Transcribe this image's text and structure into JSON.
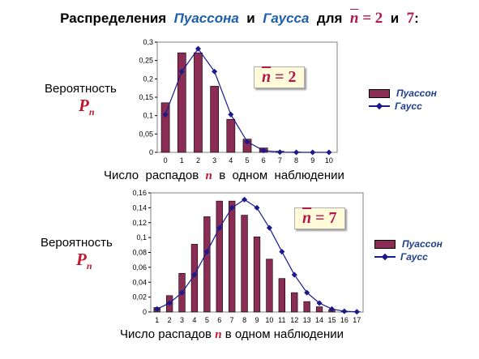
{
  "title": {
    "prefix": "Распределения",
    "poisson": "Пуассона",
    "and1": "и",
    "gauss": "Гаусса",
    "for": "для",
    "n1": "n = 2",
    "and2": "и",
    "n2": "7",
    "colon": ":"
  },
  "charts": [
    {
      "ylabel": "Вероятность",
      "pn": "P",
      "pn_sub": "n",
      "formula_var": "n",
      "formula_rest": " = 2",
      "xcap_before": "Число  распадов  ",
      "xcap_n": "n",
      "xcap_after": "  в  одном  наблюдении",
      "legend": [
        "Пуассон",
        "Гаусс"
      ]
    },
    {
      "ylabel": "Вероятность",
      "pn": "P",
      "pn_sub": "n",
      "formula_var": "n",
      "formula_rest": " = 7",
      "xcap_before": "Число распадов ",
      "xcap_n": "n",
      "xcap_after": " в одном наблюдении",
      "legend": [
        "Пуассон",
        "Гаусс"
      ]
    }
  ],
  "colors": {
    "bar": "#8b2c55",
    "line": "#1a1a8c",
    "accent": "#b0174c",
    "legend_text": "#1f3f8f"
  },
  "chart_data": [
    {
      "type": "bar",
      "categories": [
        "0",
        "1",
        "2",
        "3",
        "4",
        "5",
        "6",
        "7",
        "8",
        "9",
        "10"
      ],
      "series": [
        {
          "name": "Пуассон",
          "type": "bar",
          "values": [
            0.135,
            0.271,
            0.271,
            0.18,
            0.09,
            0.036,
            0.012,
            0.003,
            0.001,
            0.0002,
            0.0
          ]
        },
        {
          "name": "Гаусс",
          "type": "line",
          "values": [
            0.103,
            0.22,
            0.282,
            0.22,
            0.103,
            0.029,
            0.005,
            0.0005,
            0.0,
            0.0,
            0.0
          ]
        }
      ],
      "yticks": [
        "0",
        "0,05",
        "0,1",
        "0,15",
        "0,2",
        "0,25",
        "0,3"
      ],
      "ylim": [
        0,
        0.3
      ],
      "legend_position": "right"
    },
    {
      "type": "bar",
      "categories": [
        "1",
        "2",
        "3",
        "4",
        "5",
        "6",
        "7",
        "8",
        "9",
        "10",
        "11",
        "12",
        "13",
        "14",
        "15",
        "16",
        "17"
      ],
      "series": [
        {
          "name": "Пуассон",
          "type": "bar",
          "values": [
            0.006,
            0.022,
            0.052,
            0.091,
            0.128,
            0.149,
            0.149,
            0.13,
            0.101,
            0.071,
            0.045,
            0.026,
            0.014,
            0.007,
            0.003,
            0.001,
            0.0005
          ]
        },
        {
          "name": "Гаусс",
          "type": "line",
          "values": [
            0.004,
            0.012,
            0.026,
            0.05,
            0.081,
            0.113,
            0.14,
            0.151,
            0.14,
            0.113,
            0.081,
            0.05,
            0.026,
            0.012,
            0.004,
            0.001,
            0.0003
          ]
        }
      ],
      "yticks": [
        "0",
        "0,02",
        "0,04",
        "0,06",
        "0,08",
        "0,1",
        "0,12",
        "0,14",
        "0,16"
      ],
      "ylim": [
        0,
        0.16
      ],
      "legend_position": "right"
    }
  ]
}
